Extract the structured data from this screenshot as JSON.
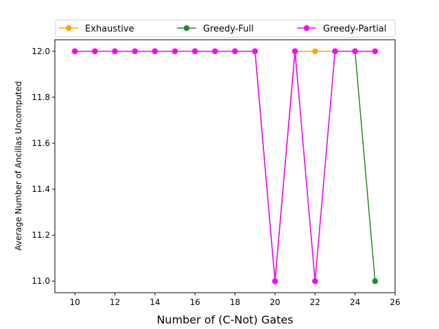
{
  "chart_data": {
    "type": "line",
    "title": "",
    "xlabel": "Number of (C-Not) Gates",
    "ylabel": "Average Number of Ancillas Uncomputed",
    "xlim": [
      9,
      26
    ],
    "ylim": [
      10.95,
      12.05
    ],
    "xticks": [
      10,
      12,
      14,
      16,
      18,
      20,
      22,
      24,
      26
    ],
    "yticks": [
      11.0,
      11.2,
      11.4,
      11.6,
      11.8,
      12.0
    ],
    "grid": false,
    "legend_position": "top",
    "x": [
      10,
      11,
      12,
      13,
      14,
      15,
      16,
      17,
      18,
      19,
      20,
      21,
      22,
      23,
      24,
      25
    ],
    "series": [
      {
        "name": "Exhaustive",
        "color": "#ffa500",
        "values": [
          12,
          12,
          12,
          12,
          12,
          12,
          12,
          12,
          12,
          12,
          11,
          12,
          12,
          12,
          12,
          12
        ]
      },
      {
        "name": "Greedy-Full",
        "color": "#228b22",
        "values": [
          12,
          12,
          12,
          12,
          12,
          12,
          12,
          12,
          12,
          12,
          11,
          12,
          11,
          12,
          12,
          11
        ]
      },
      {
        "name": "Greedy-Partial",
        "color": "#ff00ff",
        "values": [
          12,
          12,
          12,
          12,
          12,
          12,
          12,
          12,
          12,
          12,
          11,
          12,
          11,
          12,
          12,
          12
        ]
      }
    ]
  }
}
